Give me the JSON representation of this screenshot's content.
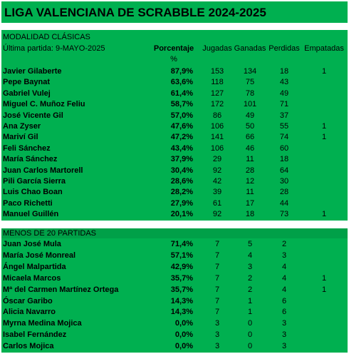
{
  "header": {
    "title": "LIGA VALENCIANA DE SCRABBLE 2024-2025"
  },
  "columns": {
    "percentage": "Porcentaje",
    "percentage_unit": "%",
    "played": "Jugadas",
    "won": "Ganadas",
    "lost": "Perdidas",
    "tied": "Empatadas"
  },
  "sections": [
    {
      "title": "MODALIDAD CLÁSICAS",
      "subtitle": "Última partida: 9-MAYO-2025",
      "rows": [
        [
          "Javier Gilaberte",
          "87,9%",
          "153",
          "134",
          "18",
          "1"
        ],
        [
          "Pepe Baynat",
          "63,6%",
          "118",
          "75",
          "43",
          null
        ],
        [
          "Gabriel Vulej",
          "61,4%",
          "127",
          "78",
          "49",
          null
        ],
        [
          "Miguel C. Muñoz Feliu",
          "58,7%",
          "172",
          "101",
          "71",
          null
        ],
        [
          "José Vicente Gil",
          "57,0%",
          "86",
          "49",
          "37",
          null
        ],
        [
          "Ana Zyser",
          "47,6%",
          "106",
          "50",
          "55",
          "1"
        ],
        [
          "Mariví Gil",
          "47,2%",
          "141",
          "66",
          "74",
          "1"
        ],
        [
          "Feli Sánchez",
          "43,4%",
          "106",
          "46",
          "60",
          null
        ],
        [
          "María Sánchez",
          "37,9%",
          "29",
          "11",
          "18",
          null
        ],
        [
          "Juan Carlos Martorell",
          "30,4%",
          "92",
          "28",
          "64",
          null
        ],
        [
          "Pili García Sierra",
          "28,6%",
          "42",
          "12",
          "30",
          null
        ],
        [
          "Luis Chao Boan",
          "28,2%",
          "39",
          "11",
          "28",
          null
        ],
        [
          "Paco Richetti",
          "27,9%",
          "61",
          "17",
          "44",
          null
        ],
        [
          "Manuel Guillén",
          "20,1%",
          "92",
          "18",
          "73",
          "1"
        ]
      ]
    },
    {
      "title": "MENOS DE 20 PARTIDAS",
      "rows": [
        [
          "Juan José Mula",
          "71,4%",
          "7",
          "5",
          "2",
          null
        ],
        [
          "María José Monreal",
          "57,1%",
          "7",
          "4",
          "3",
          null
        ],
        [
          "Ángel Malpartida",
          "42,9%",
          "7",
          "3",
          "4",
          null
        ],
        [
          "Micaela Marcos",
          "35,7%",
          "7",
          "2",
          "4",
          "1"
        ],
        [
          "Mª del Carmen Martínez Ortega",
          "35,7%",
          "7",
          "2",
          "4",
          "1"
        ],
        [
          "Óscar Garibo",
          "14,3%",
          "7",
          "1",
          "6",
          null
        ],
        [
          "Alicia Navarro",
          "14,3%",
          "7",
          "1",
          "6",
          null
        ],
        [
          "Myrna Medina Mojica",
          "0,0%",
          "3",
          "0",
          "3",
          null
        ],
        [
          "Isabel Fernández",
          "0,0%",
          "3",
          "0",
          "3",
          null
        ],
        [
          "Carlos Mojica",
          "0,0%",
          "3",
          "0",
          "3",
          null
        ]
      ]
    }
  ]
}
